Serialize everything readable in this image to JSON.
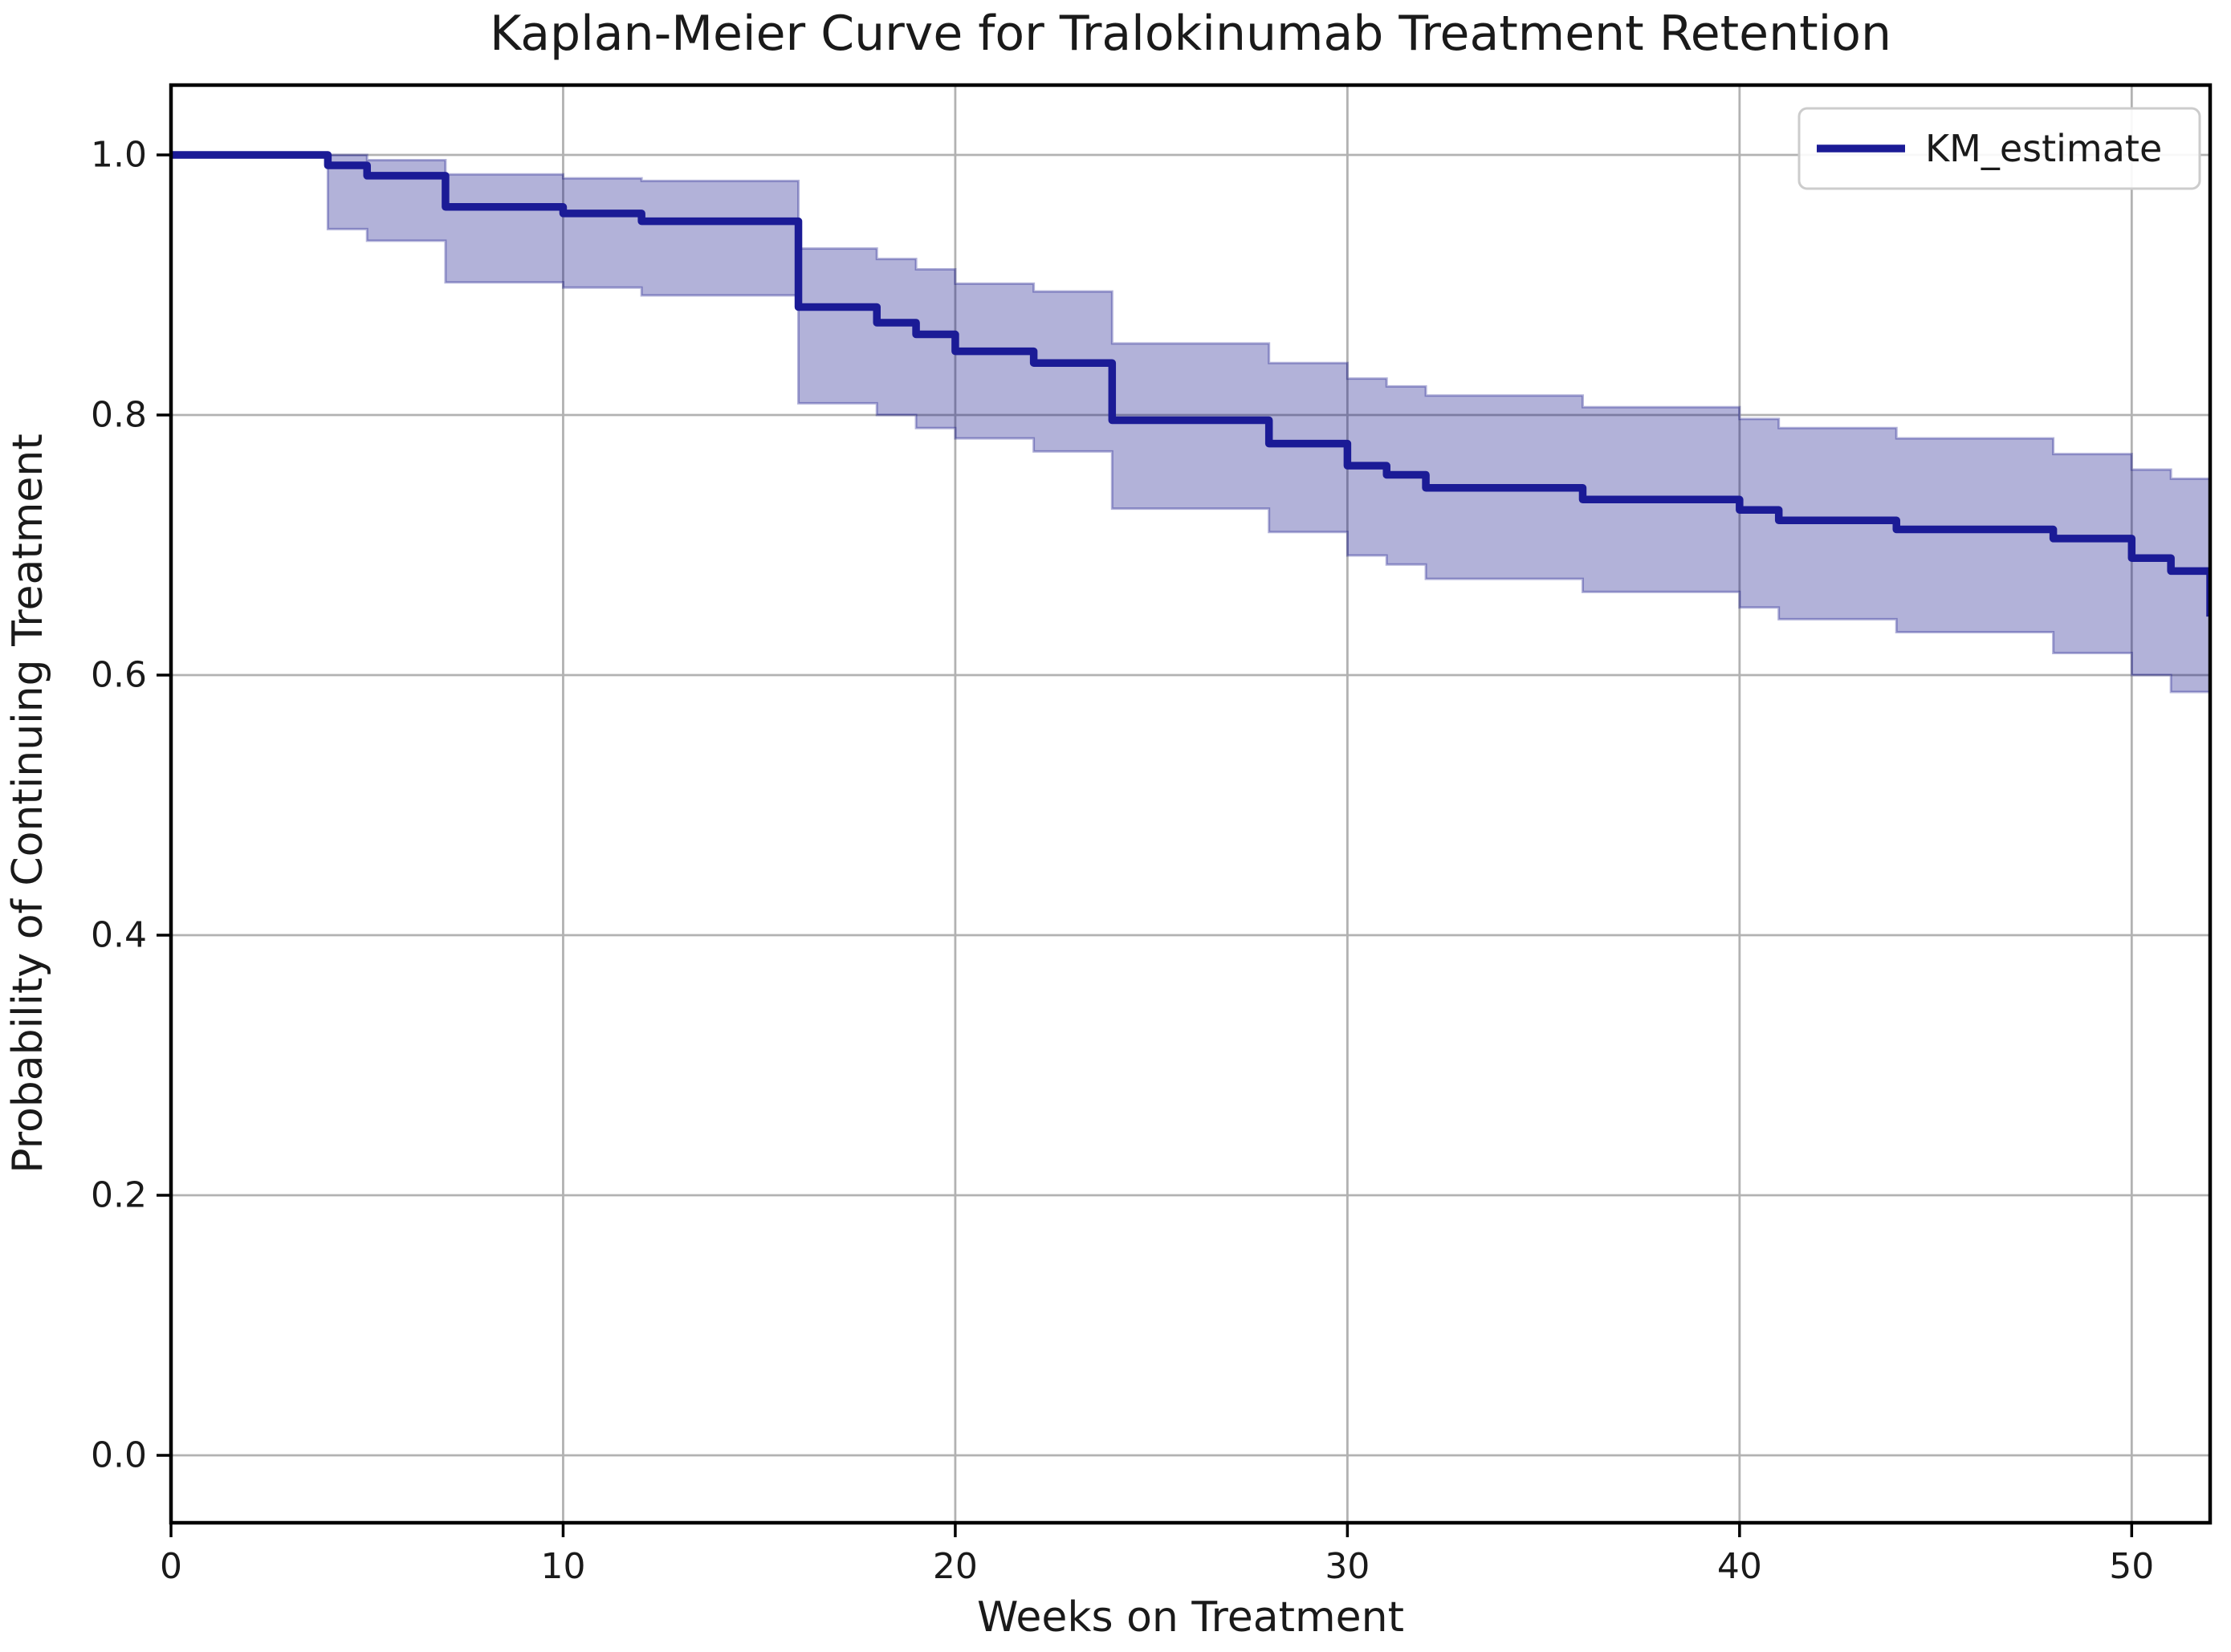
{
  "chart_data": {
    "type": "line",
    "subtype": "kaplan-meier-step",
    "title": "Kaplan-Meier Curve for Tralokinumab Treatment Retention",
    "xlabel": "Weeks on Treatment",
    "ylabel": "Probability of Continuing Treatment",
    "legend": {
      "entries": [
        "KM_estimate"
      ],
      "position": "upper right"
    },
    "xlim": [
      0,
      52
    ],
    "ylim": [
      -0.052,
      1.054
    ],
    "xticks": [
      0,
      10,
      20,
      30,
      40,
      50
    ],
    "xtick_labels": [
      "0",
      "10",
      "20",
      "30",
      "40",
      "50"
    ],
    "yticks": [
      0.0,
      0.2,
      0.4,
      0.6,
      0.8,
      1.0
    ],
    "ytick_labels": [
      "0.0",
      "0.2",
      "0.4",
      "0.6",
      "0.8",
      "1.0"
    ],
    "grid": true,
    "series": [
      {
        "name": "KM_estimate",
        "step_mode": "post",
        "points": [
          [
            0,
            1.0
          ],
          [
            4,
            0.992
          ],
          [
            5,
            0.984
          ],
          [
            7,
            0.96
          ],
          [
            10,
            0.955
          ],
          [
            12,
            0.949
          ],
          [
            16,
            0.883
          ],
          [
            18,
            0.871
          ],
          [
            19,
            0.862
          ],
          [
            20,
            0.849
          ],
          [
            22,
            0.84
          ],
          [
            24,
            0.796
          ],
          [
            28,
            0.778
          ],
          [
            30,
            0.761
          ],
          [
            31,
            0.754
          ],
          [
            32,
            0.744
          ],
          [
            36,
            0.735
          ],
          [
            40,
            0.727
          ],
          [
            41,
            0.719
          ],
          [
            44,
            0.712
          ],
          [
            48,
            0.705
          ],
          [
            50,
            0.69
          ],
          [
            51,
            0.68
          ],
          [
            52,
            0.645
          ]
        ]
      }
    ],
    "confidence_band_intervals_week_start_end_upper_lower": [
      [
        4,
        5,
        1.0,
        0.943
      ],
      [
        5,
        7,
        0.996,
        0.934
      ],
      [
        7,
        10,
        0.985,
        0.902
      ],
      [
        10,
        12,
        0.982,
        0.898
      ],
      [
        12,
        16,
        0.98,
        0.892
      ],
      [
        16,
        18,
        0.928,
        0.809
      ],
      [
        18,
        19,
        0.92,
        0.8
      ],
      [
        19,
        20,
        0.912,
        0.79
      ],
      [
        20,
        22,
        0.901,
        0.782
      ],
      [
        22,
        24,
        0.895,
        0.772
      ],
      [
        24,
        28,
        0.855,
        0.728
      ],
      [
        28,
        30,
        0.84,
        0.71
      ],
      [
        30,
        31,
        0.828,
        0.692
      ],
      [
        31,
        32,
        0.822,
        0.685
      ],
      [
        32,
        36,
        0.815,
        0.674
      ],
      [
        36,
        40,
        0.806,
        0.664
      ],
      [
        40,
        41,
        0.797,
        0.652
      ],
      [
        41,
        44,
        0.79,
        0.643
      ],
      [
        44,
        48,
        0.782,
        0.633
      ],
      [
        48,
        50,
        0.77,
        0.617
      ],
      [
        50,
        51,
        0.758,
        0.6
      ],
      [
        51,
        52,
        0.751,
        0.587
      ]
    ]
  },
  "style": {
    "line_color": "#1b1b96",
    "band_color": "#000080",
    "band_opacity": 0.3,
    "grid_color": "#b2b2b2",
    "spine_color": "#000000",
    "text_color": "#1a1a1a",
    "legend_border_color": "#cccccc",
    "background_color": "#ffffff"
  }
}
